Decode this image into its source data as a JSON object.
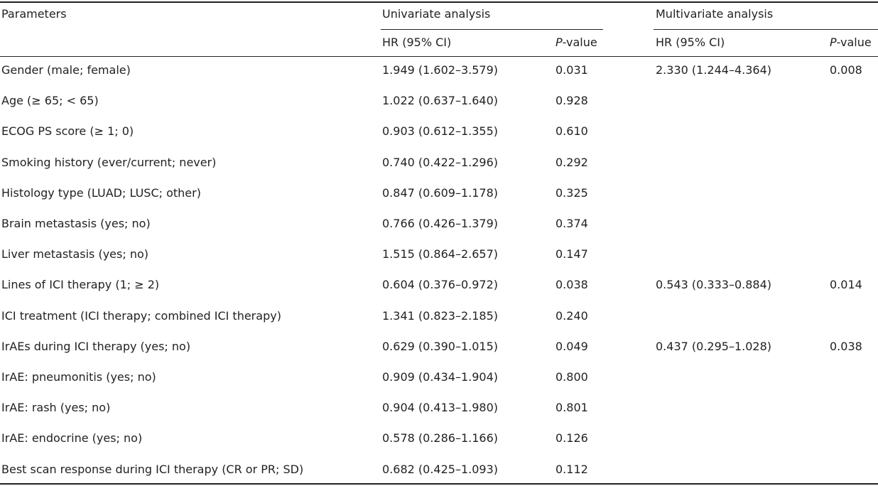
{
  "header": {
    "parameters": "Parameters",
    "univariate": "Univariate analysis",
    "multivariate": "Multivariate analysis",
    "hr_label": "HR (95% CI)",
    "p_italic": "P",
    "p_rest": "-value"
  },
  "rows": [
    {
      "param": "Gender (male; female)",
      "uni_hr": "1.949 (1.602–3.579)",
      "uni_p": "0.031",
      "multi_hr": "2.330 (1.244–4.364)",
      "multi_p": "0.008"
    },
    {
      "param": "Age (≥ 65; < 65)",
      "uni_hr": "1.022 (0.637–1.640)",
      "uni_p": "0.928",
      "multi_hr": "",
      "multi_p": ""
    },
    {
      "param": "ECOG PS score (≥ 1; 0)",
      "uni_hr": "0.903 (0.612–1.355)",
      "uni_p": "0.610",
      "multi_hr": "",
      "multi_p": ""
    },
    {
      "param": "Smoking history (ever/current; never)",
      "uni_hr": "0.740 (0.422–1.296)",
      "uni_p": "0.292",
      "multi_hr": "",
      "multi_p": ""
    },
    {
      "param": "Histology type (LUAD; LUSC; other)",
      "uni_hr": "0.847 (0.609–1.178)",
      "uni_p": "0.325",
      "multi_hr": "",
      "multi_p": ""
    },
    {
      "param": "Brain metastasis (yes; no)",
      "uni_hr": "0.766 (0.426–1.379)",
      "uni_p": "0.374",
      "multi_hr": "",
      "multi_p": ""
    },
    {
      "param": "Liver metastasis (yes; no)",
      "uni_hr": "1.515 (0.864–2.657)",
      "uni_p": "0.147",
      "multi_hr": "",
      "multi_p": ""
    },
    {
      "param": "Lines of ICI therapy (1; ≥ 2)",
      "uni_hr": "0.604 (0.376–0.972)",
      "uni_p": "0.038",
      "multi_hr": "0.543 (0.333–0.884)",
      "multi_p": "0.014"
    },
    {
      "param": "ICI treatment (ICI therapy; combined ICI therapy)",
      "uni_hr": "1.341 (0.823–2.185)",
      "uni_p": "0.240",
      "multi_hr": "",
      "multi_p": ""
    },
    {
      "param": "IrAEs during ICI therapy (yes; no)",
      "uni_hr": "0.629 (0.390–1.015)",
      "uni_p": "0.049",
      "multi_hr": "0.437 (0.295–1.028)",
      "multi_p": "0.038"
    },
    {
      "param": "IrAE: pneumonitis (yes; no)",
      "uni_hr": "0.909 (0.434–1.904)",
      "uni_p": "0.800",
      "multi_hr": "",
      "multi_p": ""
    },
    {
      "param": "IrAE: rash (yes; no)",
      "uni_hr": "0.904 (0.413–1.980)",
      "uni_p": "0.801",
      "multi_hr": "",
      "multi_p": ""
    },
    {
      "param": "IrAE: endocrine (yes; no)",
      "uni_hr": "0.578 (0.286–1.166)",
      "uni_p": "0.126",
      "multi_hr": "",
      "multi_p": ""
    },
    {
      "param": "Best scan response during ICI therapy (CR or PR; SD)",
      "uni_hr": "0.682 (0.425–1.093)",
      "uni_p": "0.112",
      "multi_hr": "",
      "multi_p": ""
    }
  ]
}
